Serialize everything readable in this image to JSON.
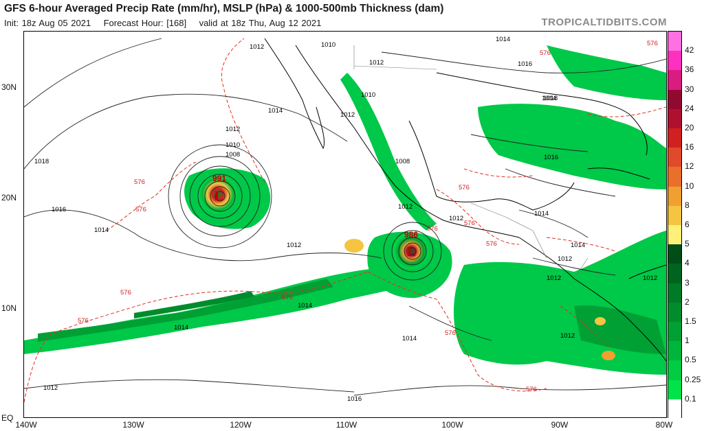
{
  "header": {
    "title": "GFS 6-hour Averaged Precip Rate (mm/hr), MSLP (hPa) & 1000-500mb Thickness (dam)",
    "init": "Init: 18z Aug 05 2021",
    "forecast_hour": "Forecast Hour: [168]",
    "valid": "valid at 18z Thu, Aug 12 2021",
    "brand": "TROPICALTIDBITS.COM"
  },
  "axes": {
    "lat_labels": [
      "30N",
      "20N",
      "10N",
      "EQ"
    ],
    "lon_labels": [
      "140W",
      "130W",
      "120W",
      "110W",
      "100W",
      "90W",
      "80W"
    ]
  },
  "colorbar": {
    "levels": [
      "0.1",
      "0.25",
      "0.5",
      "1",
      "1.5",
      "2",
      "3",
      "4",
      "5",
      "6",
      "8",
      "10",
      "12",
      "16",
      "20",
      "24",
      "30",
      "36",
      "42"
    ],
    "colors": [
      "#ffffff",
      "#00e34a",
      "#00cc44",
      "#00b53c",
      "#00a034",
      "#008c2c",
      "#007a26",
      "#006420",
      "#004d18",
      "#fff07a",
      "#f5c542",
      "#f0a030",
      "#e8702a",
      "#e04a2a",
      "#d02020",
      "#b01030",
      "#900a30",
      "#d81c80",
      "#ff30c0",
      "#ff70e0"
    ]
  },
  "lows": [
    {
      "pressure": "991",
      "symbol": "L"
    },
    {
      "pressure": "986",
      "symbol": "L"
    }
  ],
  "isobar_labels": [
    "1012",
    "1010",
    "1014",
    "1012",
    "1010",
    "1008",
    "1018",
    "1016",
    "1014",
    "1012",
    "1010",
    "1012",
    "1008",
    "1012",
    "1012",
    "1012",
    "1014",
    "1016",
    "1014",
    "1016",
    "1018",
    "1014",
    "1012",
    "1012",
    "1012",
    "1014",
    "1014",
    "1014",
    "1012",
    "1014",
    "1016",
    "1012"
  ],
  "thickness_labels": [
    "576",
    "576",
    "576",
    "576",
    "576",
    "576",
    "576",
    "576",
    "576",
    "576",
    "576",
    "576",
    "576"
  ]
}
